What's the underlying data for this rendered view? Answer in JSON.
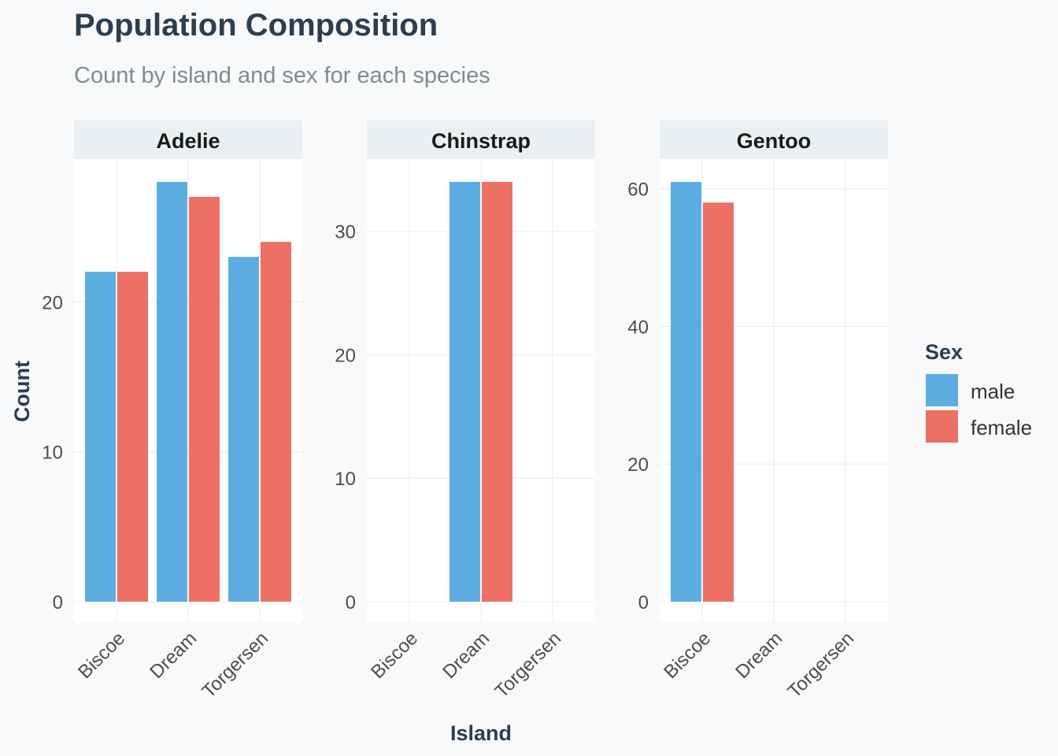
{
  "chart_data": {
    "type": "bar",
    "title": "Population Composition",
    "subtitle": "Count by island and sex for each species",
    "xlabel": "Island",
    "ylabel": "Count",
    "categories": [
      "Biscoe",
      "Dream",
      "Torgersen"
    ],
    "legend": {
      "title": "Sex",
      "placement": "right",
      "entries": [
        {
          "label": "male",
          "color": "#5dade2"
        },
        {
          "label": "female",
          "color": "#ec7063"
        }
      ]
    },
    "facets": [
      {
        "name": "Adelie",
        "ylim": [
          0,
          28
        ],
        "yticks": [
          0,
          10,
          20
        ],
        "series": [
          {
            "name": "male",
            "values": [
              22,
              28,
              23
            ]
          },
          {
            "name": "female",
            "values": [
              22,
              27,
              24
            ]
          }
        ]
      },
      {
        "name": "Chinstrap",
        "ylim": [
          0,
          34
        ],
        "yticks": [
          0,
          10,
          20,
          30
        ],
        "series": [
          {
            "name": "male",
            "values": [
              null,
              34,
              null
            ]
          },
          {
            "name": "female",
            "values": [
              null,
              34,
              null
            ]
          }
        ]
      },
      {
        "name": "Gentoo",
        "ylim": [
          0,
          61
        ],
        "yticks": [
          0,
          20,
          40,
          60
        ],
        "series": [
          {
            "name": "male",
            "values": [
              61,
              null,
              null
            ]
          },
          {
            "name": "female",
            "values": [
              58,
              null,
              null
            ]
          }
        ]
      }
    ],
    "grid": true
  }
}
